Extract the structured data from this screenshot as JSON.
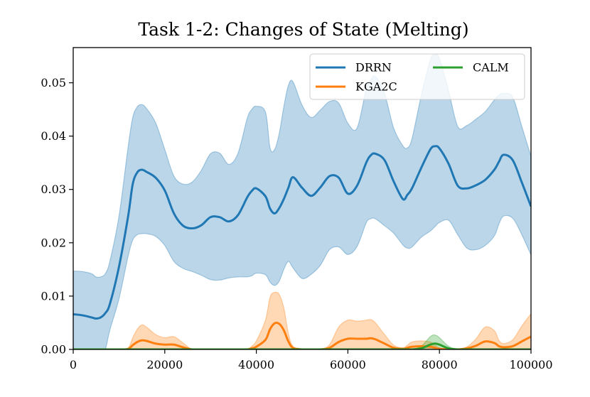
{
  "chart_data": {
    "type": "line",
    "title": "Task 1-2: Changes of State (Melting)",
    "xlabel": "",
    "ylabel": "",
    "xlim": [
      0,
      100000
    ],
    "ylim": [
      0,
      0.0566
    ],
    "grid": false,
    "legend_position": "top-right",
    "x_ticks": [
      0,
      20000,
      40000,
      60000,
      80000,
      100000
    ],
    "x_tick_labels": [
      "0",
      "20000",
      "40000",
      "60000",
      "80000",
      "100000"
    ],
    "y_ticks": [
      0,
      0.01,
      0.02,
      0.03,
      0.04,
      0.05
    ],
    "y_tick_labels": [
      "0.00",
      "0.01",
      "0.02",
      "0.03",
      "0.04",
      "0.05"
    ],
    "x": [
      0,
      2000,
      4000,
      5000,
      6000,
      7000,
      8000,
      10000,
      12000,
      13000,
      14000,
      15000,
      16000,
      18000,
      20000,
      22000,
      24000,
      26000,
      28000,
      30000,
      32000,
      34000,
      36000,
      38000,
      39000,
      40000,
      42000,
      43000,
      44000,
      45000,
      46000,
      47000,
      48000,
      50000,
      52000,
      54000,
      56000,
      58000,
      60000,
      62000,
      64000,
      65000,
      66000,
      68000,
      70000,
      72000,
      73000,
      74000,
      76000,
      78000,
      79000,
      80000,
      82000,
      84000,
      86000,
      88000,
      90000,
      92000,
      93000,
      94000,
      96000,
      98000,
      100000
    ],
    "series": [
      {
        "name": "DRRN",
        "color": "#1f77b4",
        "values": [
          0.0066,
          0.0064,
          0.006,
          0.0058,
          0.006,
          0.0068,
          0.0085,
          0.0155,
          0.025,
          0.031,
          0.0332,
          0.0337,
          0.0333,
          0.0322,
          0.0298,
          0.0255,
          0.0232,
          0.0227,
          0.0233,
          0.0248,
          0.0248,
          0.024,
          0.0252,
          0.0285,
          0.0297,
          0.0302,
          0.0287,
          0.0264,
          0.0255,
          0.0265,
          0.0282,
          0.0303,
          0.0323,
          0.0303,
          0.0288,
          0.0304,
          0.0325,
          0.0322,
          0.0292,
          0.0307,
          0.035,
          0.0364,
          0.0367,
          0.0355,
          0.0315,
          0.0282,
          0.029,
          0.0302,
          0.034,
          0.0375,
          0.0381,
          0.0377,
          0.0348,
          0.0307,
          0.0302,
          0.0308,
          0.0318,
          0.0337,
          0.0352,
          0.0365,
          0.0355,
          0.0313,
          0.0268
        ],
        "upper": [
          0.0147,
          0.0146,
          0.0142,
          0.0136,
          0.0136,
          0.0142,
          0.0165,
          0.025,
          0.038,
          0.0435,
          0.0455,
          0.0459,
          0.0452,
          0.0425,
          0.0375,
          0.0325,
          0.031,
          0.0314,
          0.0336,
          0.0367,
          0.0368,
          0.0347,
          0.0368,
          0.0433,
          0.045,
          0.0456,
          0.0445,
          0.0378,
          0.0375,
          0.0405,
          0.0455,
          0.0495,
          0.0502,
          0.0458,
          0.0435,
          0.0449,
          0.0465,
          0.0462,
          0.0424,
          0.0415,
          0.0488,
          0.0505,
          0.0512,
          0.048,
          0.0415,
          0.0382,
          0.0378,
          0.0395,
          0.0475,
          0.0542,
          0.0552,
          0.0545,
          0.0485,
          0.0418,
          0.042,
          0.0432,
          0.0446,
          0.0468,
          0.0477,
          0.048,
          0.0473,
          0.0418,
          0.0362
        ],
        "lower": [
          0.0,
          0.0,
          0.0,
          0.0,
          0.0,
          0.0,
          0.0036,
          0.0095,
          0.0175,
          0.0205,
          0.0215,
          0.0217,
          0.0217,
          0.0212,
          0.0195,
          0.0165,
          0.0152,
          0.0146,
          0.0139,
          0.0131,
          0.013,
          0.0134,
          0.0136,
          0.0136,
          0.0138,
          0.0143,
          0.014,
          0.0126,
          0.012,
          0.0128,
          0.015,
          0.0165,
          0.0153,
          0.0133,
          0.0141,
          0.0158,
          0.0187,
          0.0192,
          0.0178,
          0.0193,
          0.0237,
          0.0245,
          0.0245,
          0.0232,
          0.0218,
          0.0196,
          0.019,
          0.0192,
          0.021,
          0.0222,
          0.023,
          0.0238,
          0.0242,
          0.0215,
          0.019,
          0.0187,
          0.0195,
          0.0213,
          0.0235,
          0.025,
          0.0246,
          0.0215,
          0.0177
        ]
      },
      {
        "name": "KGA2C",
        "color": "#ff7f0e",
        "values": [
          0,
          0,
          0,
          0,
          0,
          0,
          0,
          0,
          0.0001,
          0.0008,
          0.0014,
          0.0017,
          0.0016,
          0.0011,
          0.0009,
          0.0009,
          0.0004,
          0,
          0,
          0,
          0,
          0,
          0,
          0,
          0.0002,
          0.0005,
          0.0018,
          0.0038,
          0.0049,
          0.0048,
          0.0036,
          0.0015,
          0.0003,
          0,
          0,
          0,
          0.0003,
          0.0014,
          0.002,
          0.002,
          0.002,
          0.0021,
          0.0019,
          0.0011,
          0.0003,
          0.0001,
          0.0003,
          0.0005,
          0.0006,
          0.0005,
          0.0003,
          0.0001,
          0,
          0,
          0.0002,
          0.0007,
          0.0015,
          0.0012,
          0.0006,
          0.0004,
          0.0006,
          0.0015,
          0.0024
        ],
        "upper": [
          0,
          0,
          0,
          0,
          0,
          0,
          0,
          0,
          0.0003,
          0.0022,
          0.0038,
          0.0046,
          0.0042,
          0.0028,
          0.0022,
          0.0024,
          0.0012,
          0,
          0,
          0,
          0,
          0,
          0,
          0,
          0.0006,
          0.0016,
          0.0055,
          0.0098,
          0.0107,
          0.0103,
          0.0078,
          0.003,
          0.0006,
          0,
          0,
          0,
          0.0009,
          0.0042,
          0.0055,
          0.0053,
          0.0055,
          0.0056,
          0.005,
          0.0028,
          0.0008,
          0.0003,
          0.0008,
          0.0014,
          0.0016,
          0.0014,
          0.0008,
          0.0003,
          0,
          0,
          0.0005,
          0.002,
          0.0042,
          0.0035,
          0.0017,
          0.0011,
          0.0018,
          0.0044,
          0.0067
        ],
        "lower": [
          0,
          0,
          0,
          0,
          0,
          0,
          0,
          0,
          0,
          0,
          0,
          0,
          0,
          0,
          0,
          0,
          0,
          0,
          0,
          0,
          0,
          0,
          0,
          0,
          0,
          0,
          0,
          0,
          0,
          0,
          0,
          0,
          0,
          0,
          0,
          0,
          0,
          0,
          0,
          0,
          0,
          0,
          0,
          0,
          0,
          0,
          0,
          0,
          0,
          0,
          0,
          0,
          0,
          0,
          0,
          0,
          0,
          0,
          0,
          0,
          0,
          0,
          0
        ]
      },
      {
        "name": "CALM",
        "color": "#2ca02c",
        "values": [
          0,
          0,
          0,
          0,
          0,
          0,
          0,
          0,
          0,
          0,
          0,
          0,
          0,
          0,
          0,
          0,
          0,
          0,
          0,
          0,
          0,
          0,
          0,
          0,
          0,
          0,
          0,
          0,
          0,
          0,
          0,
          0,
          0,
          0,
          0,
          0,
          0,
          0,
          0,
          0,
          0,
          0,
          0,
          0,
          0,
          0,
          0,
          0,
          0.0002,
          0.0009,
          0.0011,
          0.0009,
          0.0002,
          0,
          0,
          0,
          0,
          0,
          0,
          0,
          0,
          0,
          0
        ],
        "upper": [
          0,
          0,
          0,
          0,
          0,
          0,
          0,
          0,
          0,
          0,
          0,
          0,
          0,
          0,
          0,
          0,
          0,
          0,
          0,
          0,
          0,
          0,
          0,
          0,
          0,
          0,
          0,
          0,
          0,
          0,
          0,
          0,
          0,
          0,
          0,
          0,
          0,
          0,
          0,
          0,
          0,
          0,
          0,
          0,
          0,
          0,
          0,
          0,
          0.0006,
          0.0024,
          0.0027,
          0.0022,
          0.0006,
          0,
          0,
          0,
          0,
          0,
          0,
          0,
          0,
          0,
          0
        ],
        "lower": [
          0,
          0,
          0,
          0,
          0,
          0,
          0,
          0,
          0,
          0,
          0,
          0,
          0,
          0,
          0,
          0,
          0,
          0,
          0,
          0,
          0,
          0,
          0,
          0,
          0,
          0,
          0,
          0,
          0,
          0,
          0,
          0,
          0,
          0,
          0,
          0,
          0,
          0,
          0,
          0,
          0,
          0,
          0,
          0,
          0,
          0,
          0,
          0,
          0,
          0,
          0,
          0,
          0,
          0,
          0,
          0,
          0,
          0,
          0,
          0,
          0,
          0,
          0
        ]
      }
    ]
  }
}
